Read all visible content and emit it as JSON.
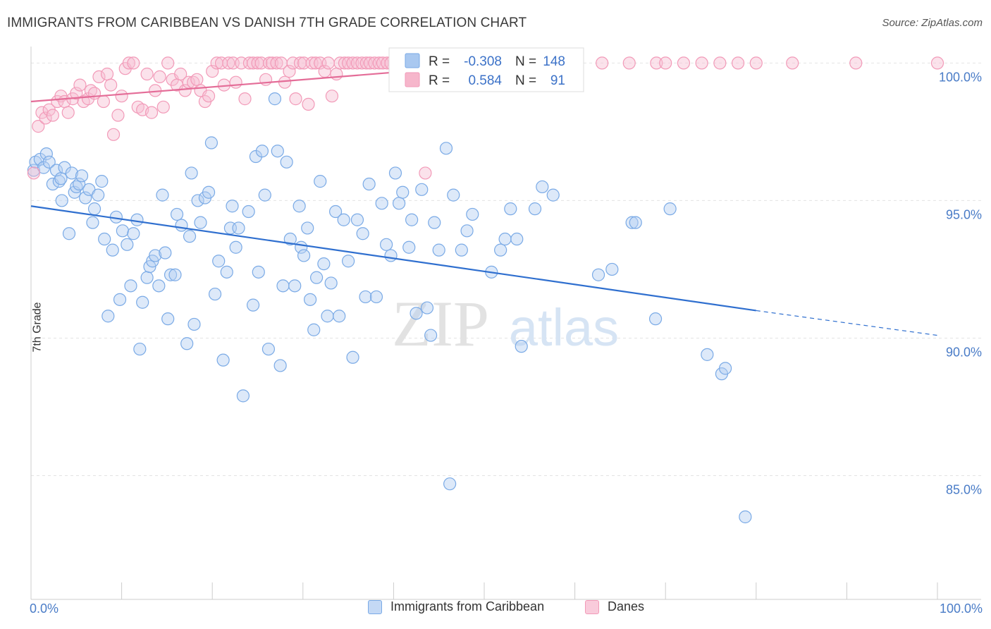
{
  "title": "IMMIGRANTS FROM CARIBBEAN VS DANISH 7TH GRADE CORRELATION CHART",
  "source": "Source: ZipAtlas.com",
  "watermark": {
    "zip": "ZIP",
    "atlas": "atlas"
  },
  "chart_data": {
    "type": "scatter",
    "xlabel": "",
    "ylabel": "7th Grade",
    "xlim": [
      0,
      100
    ],
    "ylim": [
      80.5,
      100.6
    ],
    "x_tick_labels": {
      "left": "0.0%",
      "right": "100.0%"
    },
    "y_ticks": [
      {
        "value": 100,
        "label": "100.0%"
      },
      {
        "value": 95,
        "label": "95.0%"
      },
      {
        "value": 90,
        "label": "90.0%"
      },
      {
        "value": 85,
        "label": "85.0%"
      }
    ],
    "grid": true,
    "legend_placement": "top-center",
    "legend": [
      {
        "swatch_color": "#a9c8f0",
        "r_label": "R =",
        "r_value": "-0.308",
        "n_label": "N =",
        "n_value": "148"
      },
      {
        "swatch_color": "#f6b6cb",
        "r_label": "R =",
        "r_value": "0.584",
        "n_label": "N =",
        "n_value": "91"
      }
    ],
    "series": [
      {
        "name": "Immigrants from Caribbean",
        "color": "#7aaae6",
        "line_color": "#2f6fcf",
        "trend": {
          "x_start": 0,
          "y_start": 94.8,
          "x_solid_end": 80,
          "y_solid_end": 91.0,
          "x_end": 100,
          "y_end": 90.1
        },
        "points": [
          [
            0.3,
            96.1
          ],
          [
            0.5,
            96.4
          ],
          [
            1.0,
            96.5
          ],
          [
            1.4,
            96.2
          ],
          [
            1.7,
            96.7
          ],
          [
            2.0,
            96.4
          ],
          [
            2.4,
            95.6
          ],
          [
            2.8,
            96.1
          ],
          [
            3.1,
            95.7
          ],
          [
            3.3,
            95.8
          ],
          [
            3.4,
            95.0
          ],
          [
            3.7,
            96.2
          ],
          [
            4.2,
            93.8
          ],
          [
            4.5,
            96.0
          ],
          [
            4.8,
            95.3
          ],
          [
            5.0,
            95.5
          ],
          [
            5.3,
            95.6
          ],
          [
            5.6,
            95.9
          ],
          [
            6.0,
            95.1
          ],
          [
            6.4,
            95.4
          ],
          [
            6.8,
            94.2
          ],
          [
            7.0,
            94.7
          ],
          [
            7.4,
            95.2
          ],
          [
            7.8,
            95.7
          ],
          [
            8.1,
            93.6
          ],
          [
            8.5,
            90.8
          ],
          [
            9.0,
            93.2
          ],
          [
            9.4,
            94.4
          ],
          [
            9.8,
            91.4
          ],
          [
            10.1,
            93.9
          ],
          [
            10.6,
            93.4
          ],
          [
            11.0,
            91.9
          ],
          [
            11.3,
            93.8
          ],
          [
            11.7,
            94.3
          ],
          [
            12.0,
            89.6
          ],
          [
            12.3,
            91.3
          ],
          [
            12.8,
            92.2
          ],
          [
            13.1,
            92.6
          ],
          [
            13.4,
            92.8
          ],
          [
            13.7,
            93.0
          ],
          [
            14.1,
            91.9
          ],
          [
            14.5,
            95.2
          ],
          [
            14.8,
            93.1
          ],
          [
            15.1,
            90.7
          ],
          [
            15.4,
            92.3
          ],
          [
            15.9,
            92.3
          ],
          [
            16.1,
            94.5
          ],
          [
            16.6,
            94.1
          ],
          [
            17.2,
            89.8
          ],
          [
            17.5,
            93.7
          ],
          [
            17.7,
            96.0
          ],
          [
            18.0,
            90.5
          ],
          [
            18.4,
            95.0
          ],
          [
            18.7,
            94.2
          ],
          [
            19.2,
            95.1
          ],
          [
            19.6,
            95.3
          ],
          [
            19.9,
            97.1
          ],
          [
            20.3,
            91.6
          ],
          [
            20.7,
            92.8
          ],
          [
            21.2,
            89.2
          ],
          [
            21.6,
            92.4
          ],
          [
            22.0,
            94.0
          ],
          [
            22.2,
            94.8
          ],
          [
            22.6,
            93.3
          ],
          [
            22.9,
            94.0
          ],
          [
            23.4,
            87.9
          ],
          [
            24.0,
            94.6
          ],
          [
            24.5,
            91.2
          ],
          [
            24.8,
            96.6
          ],
          [
            25.1,
            92.4
          ],
          [
            25.5,
            96.8
          ],
          [
            25.8,
            95.2
          ],
          [
            26.2,
            89.6
          ],
          [
            26.9,
            98.7
          ],
          [
            27.2,
            96.8
          ],
          [
            27.5,
            89.0
          ],
          [
            27.8,
            91.9
          ],
          [
            28.2,
            96.4
          ],
          [
            28.6,
            93.6
          ],
          [
            29.1,
            91.9
          ],
          [
            29.6,
            94.8
          ],
          [
            29.8,
            93.3
          ],
          [
            30.1,
            93.0
          ],
          [
            30.5,
            94.0
          ],
          [
            30.8,
            91.4
          ],
          [
            31.2,
            90.3
          ],
          [
            31.5,
            92.2
          ],
          [
            31.9,
            95.7
          ],
          [
            32.3,
            92.7
          ],
          [
            32.7,
            90.8
          ],
          [
            33.1,
            92.0
          ],
          [
            33.6,
            94.6
          ],
          [
            34.0,
            90.8
          ],
          [
            34.5,
            94.3
          ],
          [
            35.0,
            92.8
          ],
          [
            35.5,
            89.3
          ],
          [
            36.0,
            94.3
          ],
          [
            36.6,
            93.8
          ],
          [
            36.9,
            91.5
          ],
          [
            37.3,
            95.6
          ],
          [
            38.1,
            91.5
          ],
          [
            38.7,
            94.9
          ],
          [
            39.2,
            93.4
          ],
          [
            39.7,
            93.0
          ],
          [
            40.2,
            96.0
          ],
          [
            40.6,
            94.9
          ],
          [
            41.0,
            95.3
          ],
          [
            41.7,
            93.3
          ],
          [
            42.0,
            94.3
          ],
          [
            42.5,
            90.9
          ],
          [
            43.1,
            95.4
          ],
          [
            43.7,
            91.1
          ],
          [
            44.1,
            90.1
          ],
          [
            44.5,
            94.2
          ],
          [
            45.0,
            93.2
          ],
          [
            45.8,
            96.9
          ],
          [
            46.2,
            84.7
          ],
          [
            46.6,
            95.2
          ],
          [
            47.5,
            93.2
          ],
          [
            48.1,
            93.9
          ],
          [
            48.7,
            94.5
          ],
          [
            50.8,
            92.4
          ],
          [
            51.8,
            93.2
          ],
          [
            52.3,
            93.6
          ],
          [
            52.9,
            94.7
          ],
          [
            53.6,
            93.6
          ],
          [
            54.1,
            89.7
          ],
          [
            55.6,
            94.7
          ],
          [
            56.4,
            95.5
          ],
          [
            57.6,
            95.2
          ],
          [
            62.6,
            92.3
          ],
          [
            64.1,
            92.5
          ],
          [
            66.3,
            94.2
          ],
          [
            66.7,
            94.2
          ],
          [
            68.9,
            90.7
          ],
          [
            70.5,
            94.7
          ],
          [
            74.6,
            89.4
          ],
          [
            76.2,
            88.7
          ],
          [
            76.6,
            88.9
          ],
          [
            78.8,
            83.5
          ]
        ]
      },
      {
        "name": "Danes",
        "color": "#f29ab8",
        "line_color": "#e46d98",
        "trend": {
          "x_start": 0,
          "y_start": 98.6,
          "x_end": 49,
          "y_end": 99.9
        },
        "points": [
          [
            0.3,
            96.0
          ],
          [
            0.8,
            97.7
          ],
          [
            1.2,
            98.2
          ],
          [
            1.6,
            98.0
          ],
          [
            2.0,
            98.3
          ],
          [
            2.4,
            98.1
          ],
          [
            2.9,
            98.6
          ],
          [
            3.3,
            98.8
          ],
          [
            3.7,
            98.6
          ],
          [
            4.1,
            98.2
          ],
          [
            4.6,
            98.7
          ],
          [
            5.0,
            98.9
          ],
          [
            5.4,
            99.2
          ],
          [
            5.8,
            98.6
          ],
          [
            6.3,
            98.7
          ],
          [
            6.6,
            99.0
          ],
          [
            7.0,
            98.9
          ],
          [
            7.5,
            99.5
          ],
          [
            8.0,
            98.6
          ],
          [
            8.4,
            99.6
          ],
          [
            8.8,
            99.2
          ],
          [
            9.1,
            97.4
          ],
          [
            9.6,
            98.1
          ],
          [
            10.0,
            98.8
          ],
          [
            10.4,
            99.8
          ],
          [
            10.8,
            100.0
          ],
          [
            11.3,
            100.0
          ],
          [
            11.8,
            98.4
          ],
          [
            12.3,
            98.3
          ],
          [
            12.8,
            99.6
          ],
          [
            13.3,
            98.2
          ],
          [
            13.7,
            99.0
          ],
          [
            14.2,
            99.5
          ],
          [
            14.6,
            98.4
          ],
          [
            15.1,
            100.0
          ],
          [
            15.6,
            99.4
          ],
          [
            16.1,
            99.2
          ],
          [
            16.5,
            99.6
          ],
          [
            17.0,
            99.0
          ],
          [
            17.4,
            99.3
          ],
          [
            17.9,
            99.3
          ],
          [
            18.3,
            99.4
          ],
          [
            18.7,
            99.0
          ],
          [
            19.2,
            98.6
          ],
          [
            19.6,
            98.8
          ],
          [
            20.0,
            99.7
          ],
          [
            20.5,
            100.0
          ],
          [
            21.0,
            100.0
          ],
          [
            21.3,
            99.2
          ],
          [
            21.8,
            100.0
          ],
          [
            22.3,
            100.0
          ],
          [
            22.6,
            99.3
          ],
          [
            23.2,
            100.0
          ],
          [
            23.6,
            98.7
          ],
          [
            24.1,
            100.0
          ],
          [
            24.5,
            100.0
          ],
          [
            25.0,
            100.0
          ],
          [
            25.4,
            100.0
          ],
          [
            25.9,
            99.4
          ],
          [
            26.3,
            100.0
          ],
          [
            26.6,
            100.0
          ],
          [
            27.1,
            100.0
          ],
          [
            27.6,
            100.0
          ],
          [
            28.0,
            99.3
          ],
          [
            28.5,
            99.7
          ],
          [
            28.9,
            100.0
          ],
          [
            29.2,
            98.7
          ],
          [
            29.7,
            100.0
          ],
          [
            30.1,
            100.0
          ],
          [
            30.6,
            98.5
          ],
          [
            31.0,
            100.0
          ],
          [
            31.4,
            100.0
          ],
          [
            31.9,
            100.0
          ],
          [
            32.4,
            99.7
          ],
          [
            32.8,
            100.0
          ],
          [
            33.2,
            98.8
          ],
          [
            33.7,
            99.6
          ],
          [
            34.1,
            100.0
          ],
          [
            34.6,
            100.0
          ],
          [
            35.0,
            100.0
          ],
          [
            35.5,
            100.0
          ],
          [
            36.0,
            100.0
          ],
          [
            36.5,
            100.0
          ],
          [
            37.0,
            100.0
          ],
          [
            37.4,
            100.0
          ],
          [
            37.9,
            100.0
          ],
          [
            38.4,
            100.0
          ],
          [
            38.8,
            100.0
          ],
          [
            39.3,
            100.0
          ],
          [
            39.7,
            100.0
          ],
          [
            40.2,
            100.0
          ],
          [
            40.6,
            100.0
          ],
          [
            41.0,
            100.0
          ],
          [
            41.5,
            100.0
          ],
          [
            42.0,
            100.0
          ],
          [
            42.5,
            100.0
          ],
          [
            43.0,
            100.0
          ],
          [
            43.5,
            96.0
          ],
          [
            45.0,
            100.0
          ],
          [
            47.0,
            100.0
          ],
          [
            48.0,
            100.0
          ],
          [
            49.0,
            100.0
          ],
          [
            52.0,
            100.0
          ],
          [
            53.5,
            100.0
          ],
          [
            55.0,
            100.0
          ],
          [
            57.0,
            100.0
          ],
          [
            59.0,
            100.0
          ],
          [
            63.0,
            100.0
          ],
          [
            66.0,
            100.0
          ],
          [
            69.0,
            100.0
          ],
          [
            70.0,
            100.0
          ],
          [
            72.0,
            100.0
          ],
          [
            74.0,
            100.0
          ],
          [
            76.0,
            100.0
          ],
          [
            78.0,
            100.0
          ],
          [
            80.0,
            100.0
          ],
          [
            84.0,
            100.0
          ],
          [
            91.0,
            100.0
          ],
          [
            100.0,
            100.0
          ]
        ]
      }
    ]
  }
}
